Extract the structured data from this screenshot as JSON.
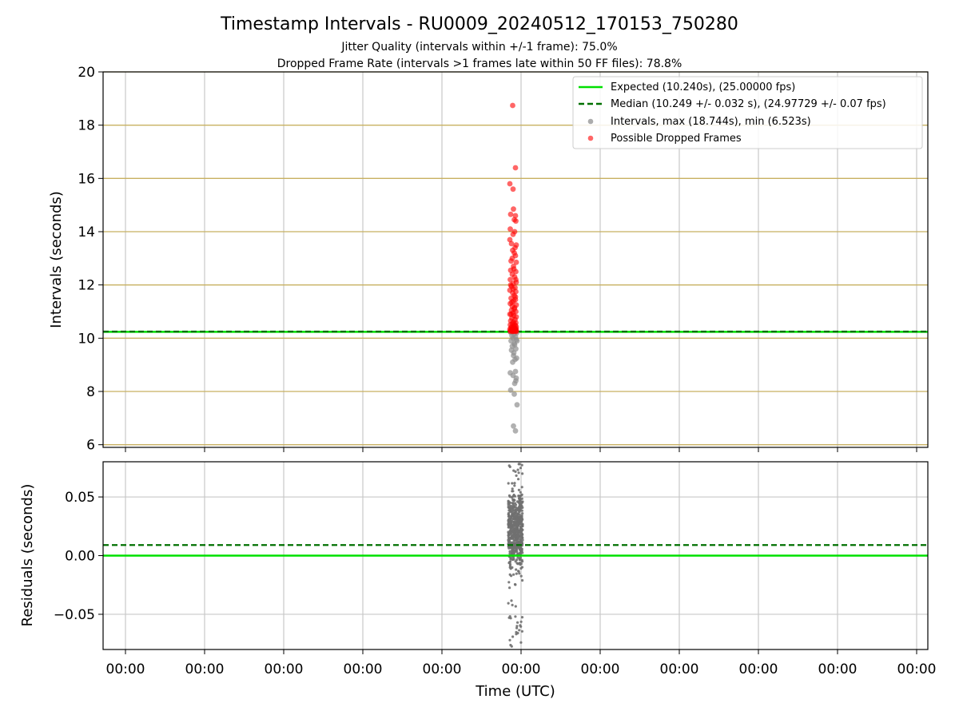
{
  "chart_data": {
    "type": "scatter",
    "title": "Timestamp Intervals - RU0009_20240512_170153_750280",
    "subtitles": [
      "Jitter Quality (intervals within +/-1 frame): 75.0%",
      "Dropped Frame Rate (intervals >1 frames late within 50 FF files): 78.8%"
    ],
    "xlabel": "Time (UTC)",
    "x_tick_labels": [
      "00:00",
      "00:00",
      "00:00",
      "00:00",
      "00:00",
      "00:00",
      "00:00",
      "00:00",
      "00:00",
      "00:00",
      "00:00"
    ],
    "grid": true,
    "legend_position": "top-right",
    "colors": {
      "expected": "#00e000",
      "median": "#007000",
      "intervals": "#909090",
      "dropped": "#ff0000",
      "reference_line": "#c8b060",
      "grid": "#c8c8c8",
      "residual_points": "#707070"
    },
    "top_panel": {
      "ylabel": "Intervals (seconds)",
      "ylim": [
        5.9,
        20
      ],
      "yticks": [
        "6",
        "8",
        "10",
        "12",
        "14",
        "16",
        "18",
        "20"
      ],
      "expected": 10.24,
      "median": 10.249,
      "reference_lines": [
        6,
        8,
        10,
        12,
        14,
        16,
        18,
        20
      ],
      "legend": [
        "Expected (10.240s), (25.00000 fps)",
        "Median (10.249 +/- 0.032 s), (24.97729 +/- 0.07 fps)",
        "Intervals, max (18.744s), min (6.523s)",
        "Possible Dropped Frames"
      ],
      "intervals_points": [
        [
          0.0,
          6.52
        ],
        [
          -0.5,
          6.7
        ],
        [
          -1.2,
          8.05
        ],
        [
          -0.3,
          7.9
        ],
        [
          0.4,
          7.5
        ],
        [
          -1.3,
          8.7
        ],
        [
          0.0,
          8.75
        ],
        [
          -0.6,
          8.6
        ],
        [
          0.1,
          8.4
        ],
        [
          -0.2,
          8.3
        ],
        [
          0.2,
          8.5
        ],
        [
          -0.7,
          9.1
        ],
        [
          -0.1,
          9.2
        ],
        [
          0.3,
          9.25
        ],
        [
          -0.5,
          9.35
        ],
        [
          -0.4,
          9.45
        ],
        [
          -1.0,
          9.55
        ],
        [
          0.1,
          9.6
        ],
        [
          -0.8,
          9.7
        ],
        [
          -0.3,
          9.8
        ],
        [
          -1.1,
          9.9
        ],
        [
          0.2,
          9.95
        ],
        [
          -0.6,
          10.0
        ],
        [
          0.0,
          10.05
        ],
        [
          -0.9,
          10.1
        ],
        [
          -0.4,
          10.15
        ],
        [
          0.3,
          10.2
        ],
        [
          -1.2,
          10.22
        ],
        [
          -0.2,
          9.75
        ],
        [
          0.4,
          9.9
        ]
      ],
      "dropped_points": [
        [
          -0.7,
          18.74
        ],
        [
          0.0,
          16.4
        ],
        [
          -1.4,
          15.8
        ],
        [
          -0.6,
          15.6
        ],
        [
          -0.5,
          14.85
        ],
        [
          -1.2,
          14.65
        ],
        [
          0.0,
          14.6
        ],
        [
          -0.3,
          14.45
        ],
        [
          0.1,
          14.4
        ],
        [
          -1.3,
          14.1
        ],
        [
          -0.2,
          14.0
        ],
        [
          -0.6,
          13.9
        ],
        [
          -1.4,
          13.7
        ],
        [
          -1.0,
          13.55
        ],
        [
          0.2,
          13.5
        ],
        [
          -0.7,
          13.3
        ],
        [
          -0.3,
          13.2
        ],
        [
          0.0,
          13.1
        ],
        [
          -1.1,
          12.9
        ],
        [
          0.2,
          12.85
        ],
        [
          -0.5,
          12.7
        ],
        [
          -1.2,
          12.55
        ],
        [
          0.1,
          12.5
        ],
        [
          -0.8,
          12.4
        ],
        [
          -0.2,
          12.3
        ],
        [
          -1.3,
          12.2
        ],
        [
          0.2,
          12.1
        ],
        [
          -0.6,
          12.05
        ],
        [
          -1.0,
          11.95
        ],
        [
          -0.1,
          11.9
        ],
        [
          -1.4,
          11.8
        ],
        [
          0.1,
          11.75
        ],
        [
          -0.7,
          11.7
        ],
        [
          -0.3,
          11.6
        ],
        [
          -1.1,
          11.5
        ],
        [
          0.0,
          11.45
        ],
        [
          -0.5,
          11.4
        ],
        [
          -1.3,
          11.3
        ],
        [
          0.2,
          11.25
        ],
        [
          -0.8,
          11.2
        ],
        [
          -0.2,
          11.15
        ],
        [
          -1.0,
          11.05
        ],
        [
          0.1,
          11.0
        ],
        [
          -0.6,
          10.95
        ],
        [
          -1.4,
          10.9
        ],
        [
          -0.4,
          10.85
        ],
        [
          0.2,
          10.8
        ],
        [
          -0.9,
          10.75
        ],
        [
          -0.1,
          10.7
        ],
        [
          -1.2,
          10.65
        ],
        [
          -0.5,
          10.6
        ],
        [
          0.1,
          10.58
        ],
        [
          -0.8,
          10.55
        ],
        [
          -0.3,
          10.52
        ],
        [
          -1.3,
          10.5
        ],
        [
          0.0,
          10.48
        ],
        [
          -0.6,
          10.45
        ],
        [
          -1.0,
          10.43
        ],
        [
          0.2,
          10.42
        ],
        [
          -0.4,
          10.4
        ],
        [
          -1.1,
          10.38
        ],
        [
          -0.2,
          10.37
        ],
        [
          0.1,
          10.36
        ],
        [
          -0.7,
          10.35
        ],
        [
          -1.4,
          10.34
        ],
        [
          -0.5,
          10.33
        ],
        [
          -0.9,
          10.32
        ],
        [
          0.2,
          10.31
        ],
        [
          -0.3,
          10.3
        ],
        [
          -1.2,
          10.3
        ],
        [
          -0.6,
          10.29
        ],
        [
          0.0,
          10.29
        ],
        [
          -1.0,
          10.28
        ],
        [
          -0.2,
          10.28
        ],
        [
          -0.8,
          10.27
        ],
        [
          0.1,
          10.27
        ],
        [
          -1.3,
          10.26
        ],
        [
          -0.4,
          10.26
        ],
        [
          -0.7,
          10.25
        ],
        [
          0.2,
          10.25
        ],
        [
          -1.1,
          10.9
        ],
        [
          -0.3,
          11.1
        ],
        [
          -0.9,
          11.35
        ],
        [
          0.0,
          11.55
        ],
        [
          -0.6,
          11.85
        ],
        [
          -1.2,
          12.0
        ],
        [
          0.1,
          12.2
        ],
        [
          -0.4,
          12.6
        ],
        [
          -0.8,
          13.0
        ],
        [
          -0.1,
          13.4
        ]
      ]
    },
    "bottom_panel": {
      "ylabel": "Residuals (seconds)",
      "ylim": [
        -0.08,
        0.08
      ],
      "yticks": [
        "−0.05",
        "0.00",
        "0.05"
      ],
      "expected": 0.0,
      "median": 0.009
    }
  }
}
